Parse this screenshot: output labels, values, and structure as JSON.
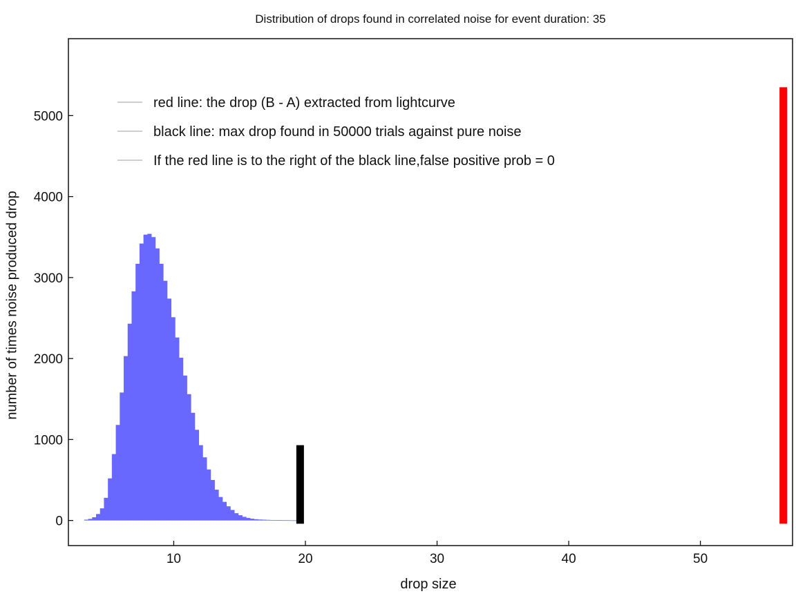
{
  "chart_data": {
    "type": "bar",
    "title": "Distribution of drops found in correlated noise for event duration: 35",
    "xlabel": "drop size",
    "ylabel": "number of times noise produced drop",
    "xlim": [
      2,
      57
    ],
    "ylim": [
      -310,
      5950
    ],
    "x_ticks": [
      10,
      20,
      30,
      40,
      50
    ],
    "y_ticks": [
      0,
      1000,
      2000,
      3000,
      4000,
      5000
    ],
    "grid": false,
    "legend_position": "top-left",
    "legend": [
      "red line: the drop (B - A) extracted from lightcurve",
      "black line: max drop found in 50000 trials against pure noise",
      "If the red line is to the right of the black line,false positive prob = 0"
    ],
    "histogram": {
      "bin_width": 0.3,
      "color": "#6868ff",
      "x": [
        3.2,
        3.5,
        3.8,
        4.1,
        4.4,
        4.7,
        5.0,
        5.3,
        5.6,
        5.9,
        6.2,
        6.5,
        6.8,
        7.1,
        7.4,
        7.7,
        8.0,
        8.3,
        8.6,
        8.9,
        9.2,
        9.5,
        9.8,
        10.1,
        10.4,
        10.7,
        11.0,
        11.3,
        11.6,
        11.9,
        12.2,
        12.5,
        12.8,
        13.1,
        13.4,
        13.7,
        14.0,
        14.3,
        14.6,
        14.9,
        15.2,
        15.5,
        15.8,
        16.1,
        16.4,
        16.7,
        17.0,
        17.3,
        17.6,
        17.9,
        18.2,
        18.5,
        18.8,
        19.1,
        19.4
      ],
      "values": [
        10,
        20,
        40,
        80,
        150,
        280,
        520,
        820,
        1180,
        1580,
        2030,
        2430,
        2830,
        3170,
        3420,
        3530,
        3540,
        3500,
        3360,
        3170,
        2960,
        2740,
        2510,
        2260,
        2010,
        1790,
        1560,
        1330,
        1120,
        930,
        780,
        630,
        500,
        380,
        290,
        230,
        175,
        130,
        90,
        65,
        45,
        32,
        22,
        16,
        12,
        10,
        8,
        6,
        5,
        4,
        3,
        3,
        2,
        2,
        2
      ]
    },
    "markers": [
      {
        "name": "black line",
        "x": 19.6,
        "ymin": -40,
        "ymax": 930,
        "color": "#000000"
      },
      {
        "name": "red line",
        "x": 56.3,
        "ymin": -40,
        "ymax": 5350,
        "color": "#ff0000"
      }
    ]
  }
}
